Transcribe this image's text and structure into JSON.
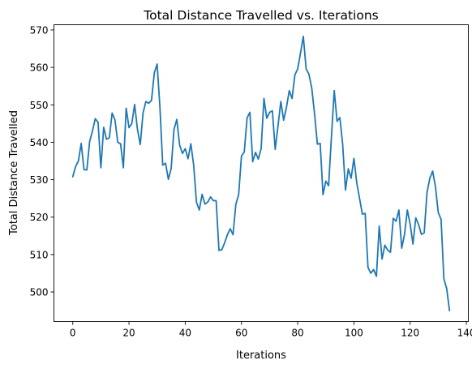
{
  "chart_data": {
    "type": "line",
    "title": "Total Distance Travelled vs. Iterations",
    "xlabel": "Iterations",
    "ylabel": "Total Distance Travelled",
    "xlim": [
      -6.7,
      140.7
    ],
    "ylim": [
      492.1,
      571.4
    ],
    "xticks": [
      0,
      20,
      40,
      60,
      80,
      100,
      120,
      140
    ],
    "yticks": [
      500,
      510,
      520,
      530,
      540,
      550,
      560,
      570
    ],
    "grid": false,
    "legend": "none",
    "color": "#1f77b4",
    "series": [
      {
        "x": [
          0,
          1,
          2,
          3,
          4,
          5,
          6,
          7,
          8,
          9,
          10,
          11,
          12,
          13,
          14,
          15,
          16,
          17,
          18,
          19,
          20,
          21,
          22,
          23,
          24,
          25,
          26,
          27,
          28,
          29,
          30,
          31,
          32,
          33,
          34,
          35,
          36,
          37,
          38,
          39,
          40,
          41,
          42,
          43,
          44,
          45,
          46,
          47,
          48,
          49,
          50,
          51,
          52,
          53,
          54,
          55,
          56,
          57,
          58,
          59,
          60,
          61,
          62,
          63,
          64,
          65,
          66,
          67,
          68,
          69,
          70,
          71,
          72,
          73,
          74,
          75,
          76,
          77,
          78,
          79,
          80,
          81,
          82,
          83,
          84,
          85,
          86,
          87,
          88,
          89,
          90,
          91,
          92,
          93,
          94,
          95,
          96,
          97,
          98,
          99,
          100,
          101,
          102,
          103,
          104,
          105,
          106,
          107,
          108,
          109,
          110,
          111,
          112,
          113,
          114,
          115,
          116,
          117,
          118,
          119,
          120,
          121,
          122,
          123,
          124,
          125,
          126,
          127,
          128,
          129,
          130,
          131,
          132,
          133,
          134
        ],
        "values": [
          530.8,
          533.5,
          535.0,
          539.7,
          532.7,
          532.6,
          540.2,
          543.0,
          546.3,
          545.3,
          533.2,
          544.0,
          540.8,
          541.2,
          547.8,
          546.0,
          540.0,
          539.6,
          533.2,
          549.1,
          543.9,
          545.0,
          550.1,
          543.5,
          539.4,
          547.8,
          550.9,
          550.4,
          551.2,
          558.5,
          560.9,
          549.4,
          533.9,
          534.4,
          530.1,
          533.0,
          543.4,
          546.1,
          539.3,
          537.0,
          538.3,
          535.6,
          539.6,
          533.9,
          524.0,
          521.9,
          526.1,
          523.5,
          524.0,
          525.4,
          524.4,
          524.4,
          511.1,
          511.3,
          513.1,
          515.3,
          516.9,
          515.3,
          523.4,
          526.0,
          536.3,
          537.4,
          546.5,
          548.0,
          534.8,
          537.3,
          535.5,
          538.3,
          551.7,
          546.4,
          548.0,
          548.4,
          538.1,
          544.4,
          550.9,
          545.9,
          549.3,
          553.8,
          551.7,
          558.0,
          559.6,
          563.8,
          568.3,
          559.6,
          558.2,
          554.5,
          547.6,
          539.5,
          539.7,
          526.0,
          529.6,
          528.4,
          541.5,
          553.8,
          545.6,
          546.6,
          539.4,
          527.2,
          532.9,
          530.4,
          535.7,
          529.2,
          525.0,
          520.8,
          521.0,
          506.6,
          505.0,
          506.0,
          504.2,
          517.6,
          508.8,
          512.5,
          511.2,
          510.6,
          519.7,
          518.9,
          521.9,
          511.7,
          515.4,
          521.9,
          518.1,
          512.8,
          519.8,
          518.0,
          515.4,
          515.8,
          526.6,
          530.4,
          532.3,
          528.1,
          521.2,
          519.4,
          503.5,
          500.9,
          495.0
        ]
      }
    ]
  }
}
